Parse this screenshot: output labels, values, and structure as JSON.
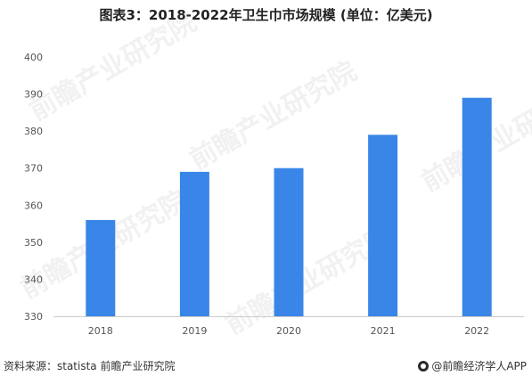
{
  "chart_data": {
    "type": "bar",
    "title": "图表3：2018-2022年卫生巾市场规模 (单位：亿美元)",
    "categories": [
      "2018",
      "2019",
      "2020",
      "2021",
      "2022"
    ],
    "values": [
      356,
      369,
      370,
      379,
      389
    ],
    "ylim": [
      330,
      400
    ],
    "yticks": [
      "330",
      "340",
      "350",
      "360",
      "370",
      "380",
      "390",
      "400"
    ],
    "xlabel": "",
    "ylabel": "",
    "grid": false,
    "bar_color": "#3a86e8"
  },
  "footer": {
    "source": "资料来源：statista 前瞻产业研究院",
    "brand": "@前瞻经济学人APP"
  },
  "watermark": "前瞻产业研究院"
}
